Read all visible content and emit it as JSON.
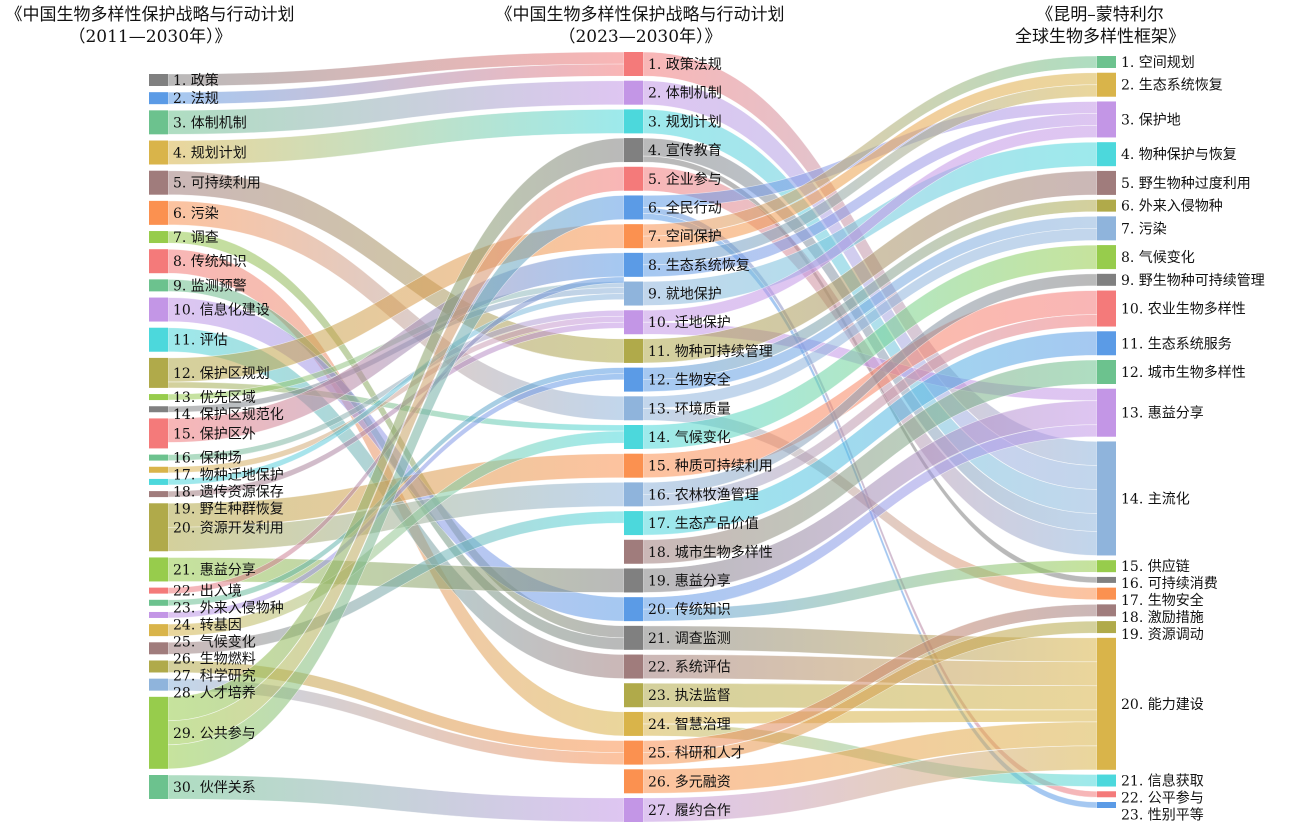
{
  "columns": [
    {
      "title_line1": "《中国生物多样性保护战略与行动计划",
      "title_line2": "（2011—2030年）》"
    },
    {
      "title_line1": "《中国生物多样性保护战略与行动计划",
      "title_line2": "（2023—2030年）》"
    },
    {
      "title_line1": "《昆明–蒙特利尔",
      "title_line2": "全球生物多样性框架》"
    }
  ],
  "palette": {
    "gray": "#808080",
    "blue": "#5b9be6",
    "green": "#6cc28e",
    "gold": "#d9b44a",
    "mauve": "#a07c7c",
    "orange": "#fb9150",
    "yellowgreen": "#97cc4c",
    "red": "#f47a7a",
    "purple": "#c396e6",
    "cyan": "#4cd8dc",
    "olive": "#b0aa4a",
    "lightblue": "#8fb4dc"
  },
  "nodes": [
    [
      {
        "label": "1. 政策",
        "color": "gray",
        "value": 2
      },
      {
        "label": "2. 法规",
        "color": "blue",
        "value": 2
      },
      {
        "label": "3. 体制机制",
        "color": "green",
        "value": 4
      },
      {
        "label": "4. 规划计划",
        "color": "gold",
        "value": 4
      },
      {
        "label": "5. 可持续利用",
        "color": "mauve",
        "value": 4
      },
      {
        "label": "6. 污染",
        "color": "orange",
        "value": 4
      },
      {
        "label": "7. 调查",
        "color": "yellowgreen",
        "value": 2
      },
      {
        "label": "8. 传统知识",
        "color": "red",
        "value": 4
      },
      {
        "label": "9. 监测预警",
        "color": "green",
        "value": 2
      },
      {
        "label": "10. 信息化建设",
        "color": "purple",
        "value": 4
      },
      {
        "label": "11. 评估",
        "color": "cyan",
        "value": 4
      },
      {
        "label": "12. 保护区规划",
        "color": "olive",
        "value": 5
      },
      {
        "label": "13. 优先区域",
        "color": "yellowgreen",
        "value": 1
      },
      {
        "label": "14. 保护区规范化",
        "color": "gray",
        "value": 1
      },
      {
        "label": "15. 保护区外",
        "color": "red",
        "value": 5
      },
      {
        "label": "16. 保种场",
        "color": "green",
        "value": 1
      },
      {
        "label": "17. 物种迁地保护",
        "color": "gold",
        "value": 1
      },
      {
        "label": "18. 遗传资源保存",
        "color": "cyan",
        "value": 1
      },
      {
        "label": "19. 野生种群恢复",
        "color": "mauve",
        "value": 1
      },
      {
        "label": "20. 资源开发利用",
        "color": "olive",
        "value": 8
      },
      {
        "label": "21. 惠益分享",
        "color": "yellowgreen",
        "value": 4
      },
      {
        "label": "22. 出入境",
        "color": "red",
        "value": 1
      },
      {
        "label": "23. 外来入侵物种",
        "color": "green",
        "value": 1
      },
      {
        "label": "24. 转基因",
        "color": "purple",
        "value": 1
      },
      {
        "label": "25. 气候变化",
        "color": "gold",
        "value": 2
      },
      {
        "label": "26. 生物燃料",
        "color": "mauve",
        "value": 2
      },
      {
        "label": "27. 科学研究",
        "color": "olive",
        "value": 2
      },
      {
        "label": "28. 人才培养",
        "color": "lightblue",
        "value": 2
      },
      {
        "label": "29. 公共参与",
        "color": "yellowgreen",
        "value": 12
      },
      {
        "label": "30. 伙伴关系",
        "color": "green",
        "value": 4
      }
    ],
    [
      {
        "label": "1. 政策法规",
        "color": "red",
        "value": 4
      },
      {
        "label": "2. 体制机制",
        "color": "purple",
        "value": 4
      },
      {
        "label": "3. 规划计划",
        "color": "cyan",
        "value": 4
      },
      {
        "label": "4. 宣传教育",
        "color": "gray",
        "value": 4
      },
      {
        "label": "5. 企业参与",
        "color": "red",
        "value": 4
      },
      {
        "label": "6. 全民行动",
        "color": "blue",
        "value": 4
      },
      {
        "label": "7. 空间保护",
        "color": "orange",
        "value": 4
      },
      {
        "label": "8. 生态系统恢复",
        "color": "blue",
        "value": 4
      },
      {
        "label": "9. 就地保护",
        "color": "lightblue",
        "value": 4
      },
      {
        "label": "10. 迁地保护",
        "color": "purple",
        "value": 4
      },
      {
        "label": "11. 物种可持续管理",
        "color": "olive",
        "value": 4
      },
      {
        "label": "12. 生物安全",
        "color": "blue",
        "value": 4
      },
      {
        "label": "13. 环境质量",
        "color": "lightblue",
        "value": 4
      },
      {
        "label": "14. 气候变化",
        "color": "cyan",
        "value": 4
      },
      {
        "label": "15. 种质可持续利用",
        "color": "orange",
        "value": 4
      },
      {
        "label": "16. 农林牧渔管理",
        "color": "lightblue",
        "value": 4
      },
      {
        "label": "17. 生态产品价值",
        "color": "cyan",
        "value": 4
      },
      {
        "label": "18. 城市生物多样性",
        "color": "mauve",
        "value": 4
      },
      {
        "label": "19. 惠益分享",
        "color": "gray",
        "value": 4
      },
      {
        "label": "20. 传统知识",
        "color": "blue",
        "value": 4
      },
      {
        "label": "21. 调查监测",
        "color": "gray",
        "value": 4
      },
      {
        "label": "22. 系统评估",
        "color": "mauve",
        "value": 4
      },
      {
        "label": "23. 执法监督",
        "color": "olive",
        "value": 4
      },
      {
        "label": "24. 智慧治理",
        "color": "gold",
        "value": 4
      },
      {
        "label": "25. 科研和人才",
        "color": "orange",
        "value": 4
      },
      {
        "label": "26. 多元融资",
        "color": "orange",
        "value": 4
      },
      {
        "label": "27. 履约合作",
        "color": "purple",
        "value": 4
      }
    ],
    [
      {
        "label": "1. 空间规划",
        "color": "green",
        "value": 2
      },
      {
        "label": "2. 生态系统恢复",
        "color": "gold",
        "value": 4
      },
      {
        "label": "3. 保护地",
        "color": "purple",
        "value": 6
      },
      {
        "label": "4. 物种保护与恢复",
        "color": "cyan",
        "value": 4
      },
      {
        "label": "5. 野生物种过度利用",
        "color": "mauve",
        "value": 4
      },
      {
        "label": "6. 外来入侵物种",
        "color": "olive",
        "value": 2
      },
      {
        "label": "7. 污染",
        "color": "lightblue",
        "value": 4
      },
      {
        "label": "8. 气候变化",
        "color": "yellowgreen",
        "value": 4
      },
      {
        "label": "9. 野生物种可持续管理",
        "color": "gray",
        "value": 2
      },
      {
        "label": "10. 农业生物多样性",
        "color": "red",
        "value": 6
      },
      {
        "label": "11. 生态系统服务",
        "color": "blue",
        "value": 4
      },
      {
        "label": "12. 城市生物多样性",
        "color": "green",
        "value": 4
      },
      {
        "label": "13. 惠益分享",
        "color": "purple",
        "value": 8
      },
      {
        "label": "14. 主流化",
        "color": "lightblue",
        "value": 19
      },
      {
        "label": "15. 供应链",
        "color": "yellowgreen",
        "value": 2
      },
      {
        "label": "16. 可持续消费",
        "color": "gray",
        "value": 1
      },
      {
        "label": "17. 生物安全",
        "color": "orange",
        "value": 2
      },
      {
        "label": "18. 激励措施",
        "color": "mauve",
        "value": 2
      },
      {
        "label": "19. 资源调动",
        "color": "olive",
        "value": 2
      },
      {
        "label": "20. 能力建设",
        "color": "gold",
        "value": 22
      },
      {
        "label": "21. 信息获取",
        "color": "cyan",
        "value": 2
      },
      {
        "label": "22. 公平参与",
        "color": "red",
        "value": 1
      },
      {
        "label": "23. 性别平等",
        "color": "blue",
        "value": 1
      }
    ]
  ],
  "links": [
    [
      [
        1,
        1,
        2
      ],
      [
        2,
        1,
        2
      ],
      [
        3,
        2,
        4
      ],
      [
        4,
        3,
        4
      ],
      [
        5,
        11,
        4
      ],
      [
        6,
        13,
        4
      ],
      [
        7,
        21,
        2
      ],
      [
        8,
        24,
        4
      ],
      [
        9,
        21,
        2
      ],
      [
        10,
        20,
        4
      ],
      [
        11,
        22,
        4
      ],
      [
        12,
        7,
        4
      ],
      [
        12,
        14,
        1
      ],
      [
        13,
        9,
        1
      ],
      [
        14,
        9,
        1
      ],
      [
        15,
        8,
        4
      ],
      [
        16,
        10,
        1
      ],
      [
        17,
        10,
        1
      ],
      [
        18,
        9,
        1
      ],
      [
        19,
        10,
        1
      ],
      [
        20,
        15,
        4
      ],
      [
        20,
        16,
        4
      ],
      [
        21,
        19,
        4
      ],
      [
        22,
        8,
        1
      ],
      [
        23,
        12,
        1
      ],
      [
        24,
        12,
        1
      ],
      [
        25,
        14,
        2
      ],
      [
        26,
        17,
        2
      ],
      [
        27,
        25,
        2
      ],
      [
        28,
        25,
        2
      ],
      [
        29,
        4,
        4
      ],
      [
        29,
        5,
        4
      ],
      [
        29,
        6,
        4
      ],
      [
        30,
        27,
        4
      ]
    ],
    [
      [
        1,
        14,
        4
      ],
      [
        2,
        14,
        4
      ],
      [
        3,
        14,
        4
      ],
      [
        4,
        14,
        3
      ],
      [
        4,
        16,
        1
      ],
      [
        5,
        14,
        4
      ],
      [
        6,
        3,
        2
      ],
      [
        6,
        22,
        1
      ],
      [
        6,
        23,
        1
      ],
      [
        7,
        1,
        2
      ],
      [
        7,
        2,
        2
      ],
      [
        8,
        2,
        2
      ],
      [
        8,
        3,
        2
      ],
      [
        9,
        4,
        4
      ],
      [
        10,
        3,
        2
      ],
      [
        10,
        13,
        2
      ],
      [
        11,
        5,
        4
      ],
      [
        12,
        6,
        2
      ],
      [
        12,
        7,
        2
      ],
      [
        13,
        7,
        2
      ],
      [
        13,
        17,
        2
      ],
      [
        14,
        8,
        4
      ],
      [
        15,
        10,
        4
      ],
      [
        16,
        9,
        2
      ],
      [
        16,
        10,
        2
      ],
      [
        17,
        11,
        4
      ],
      [
        18,
        12,
        4
      ],
      [
        19,
        13,
        4
      ],
      [
        20,
        13,
        2
      ],
      [
        20,
        15,
        2
      ],
      [
        21,
        20,
        4
      ],
      [
        22,
        20,
        4
      ],
      [
        23,
        20,
        4
      ],
      [
        24,
        20,
        2
      ],
      [
        24,
        21,
        2
      ],
      [
        25,
        18,
        2
      ],
      [
        25,
        19,
        2
      ],
      [
        26,
        20,
        4
      ],
      [
        27,
        20,
        4
      ]
    ]
  ]
}
